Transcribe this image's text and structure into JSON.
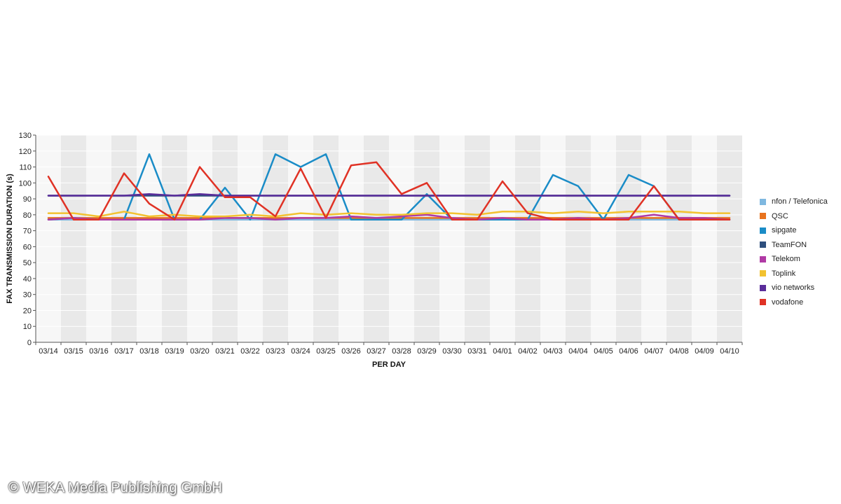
{
  "chart_data": {
    "type": "line",
    "xlabel": "PER DAY",
    "ylabel": "FAX TRANSMISSION DURATION (s)",
    "ylim": [
      0,
      130
    ],
    "yticks": [
      0,
      10,
      20,
      30,
      40,
      50,
      60,
      70,
      80,
      90,
      100,
      110,
      120,
      130
    ],
    "grid": "alternating vertical bands",
    "legend": "right",
    "categories": [
      "03/14",
      "03/15",
      "03/16",
      "03/17",
      "03/18",
      "03/19",
      "03/20",
      "03/21",
      "03/22",
      "03/23",
      "03/24",
      "03/25",
      "03/26",
      "03/27",
      "03/28",
      "03/29",
      "03/30",
      "03/31",
      "04/01",
      "04/02",
      "04/03",
      "04/04",
      "04/05",
      "04/06",
      "04/07",
      "04/08",
      "04/09",
      "04/10"
    ],
    "series": [
      {
        "name": "nfon / Telefonica",
        "color": "#7fb8e0",
        "values": [
          77,
          77,
          77,
          77,
          77,
          77,
          77,
          77,
          77,
          77,
          77,
          77,
          77,
          77,
          77,
          77,
          77,
          77,
          77,
          77,
          77,
          77,
          77,
          77,
          77,
          77,
          77,
          77
        ]
      },
      {
        "name": "QSC",
        "color": "#e8731e",
        "values": [
          78,
          78,
          78,
          78,
          78,
          78,
          78,
          78,
          78,
          78,
          78,
          78,
          78,
          78,
          78,
          78,
          78,
          78,
          78,
          78,
          78,
          78,
          78,
          78,
          78,
          78,
          78,
          78
        ]
      },
      {
        "name": "sipgate",
        "color": "#1a8cc7",
        "values": [
          77,
          78,
          77,
          77,
          118,
          77,
          77,
          97,
          77,
          118,
          110,
          118,
          77,
          77,
          77,
          93,
          77,
          77,
          77,
          77,
          105,
          98,
          77,
          105,
          98,
          77,
          77,
          77
        ]
      },
      {
        "name": "TeamFON",
        "color": "#2e4f7e",
        "values": [
          92,
          92,
          92,
          92,
          92,
          92,
          92,
          92,
          92,
          92,
          92,
          92,
          92,
          92,
          92,
          92,
          92,
          92,
          92,
          92,
          92,
          92,
          92,
          92,
          92,
          92,
          92,
          92
        ]
      },
      {
        "name": "Telekom",
        "color": "#b03aa5",
        "values": [
          77,
          78,
          77,
          77,
          77,
          77,
          77,
          78,
          78,
          77,
          78,
          78,
          79,
          78,
          79,
          80,
          78,
          77,
          78,
          77,
          77,
          78,
          77,
          78,
          80,
          78,
          78,
          77
        ]
      },
      {
        "name": "Toplink",
        "color": "#f2c230",
        "values": [
          81,
          81,
          79,
          82,
          79,
          80,
          79,
          79,
          80,
          79,
          81,
          80,
          81,
          80,
          80,
          81,
          81,
          80,
          82,
          82,
          81,
          82,
          81,
          82,
          82,
          82,
          81,
          81
        ]
      },
      {
        "name": "vio networks",
        "color": "#5a2d9a",
        "values": [
          92,
          92,
          92,
          92,
          93,
          92,
          93,
          92,
          92,
          92,
          92,
          92,
          92,
          92,
          92,
          92,
          92,
          92,
          92,
          92,
          92,
          92,
          92,
          92,
          92,
          92,
          92,
          92
        ]
      },
      {
        "name": "vodafone",
        "color": "#e03225",
        "values": [
          104,
          77,
          77,
          106,
          87,
          77,
          110,
          91,
          91,
          79,
          109,
          78,
          111,
          113,
          93,
          100,
          77,
          77,
          101,
          81,
          77,
          77,
          77,
          77,
          98,
          77,
          77,
          77
        ]
      }
    ]
  },
  "copyright": "© WEKA Media Publishing GmbH"
}
